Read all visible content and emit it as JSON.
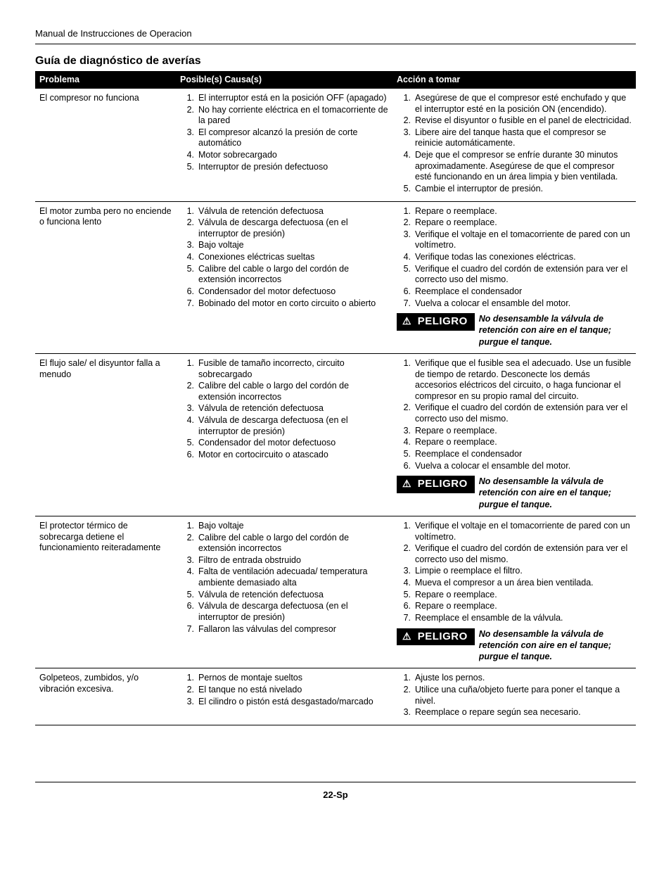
{
  "header": "Manual de Instrucciones de Operacion",
  "section_title": "Guía de diagnóstico de averías",
  "columns": {
    "problem": "Problema",
    "cause": "Posible(s) Causa(s)",
    "action": "Acción a tomar"
  },
  "peligro_label": "PELIGRO",
  "peligro_text": "No desensamble la válvula de retención con aire en el tanque; purgue el tanque.",
  "rows": [
    {
      "problem": "El compresor no funciona",
      "causes": [
        "El interruptor está en la posición OFF (apagado)",
        "No hay corriente eléctrica en el tomacorriente de la pared",
        "El compresor alcanzó la presión de corte automático",
        "Motor sobrecargado",
        "Interruptor de presión defectuoso"
      ],
      "actions": [
        "Asegúrese de que el compresor esté enchufado y que el interruptor esté en la posición ON (encendido).",
        "Revise el disyuntor o fusible en el panel de electricidad.",
        "Libere aire del tanque hasta que el compresor se reinicie automáticamente.",
        "Deje que el compresor se enfríe durante 30 minutos aproximadamente.  Asegúrese de que el compresor esté funcionando en un área limpia y bien ventilada.",
        "Cambie el interruptor de presión."
      ],
      "peligro": false
    },
    {
      "problem": "El motor zumba pero no enciende o funciona lento",
      "causes": [
        "Válvula de retención defectuosa",
        "Válvula de descarga defectuosa (en el interruptor de presión)",
        "Bajo voltaje",
        "Conexiones eléctricas sueltas",
        "Calibre del cable o largo del cordón de extensión incorrectos",
        "Condensador del motor defectuoso",
        "Bobinado del motor en corto circuito o abierto"
      ],
      "actions": [
        "Repare o reemplace.",
        "Repare o reemplace.",
        "Verifique el voltaje en el tomacorriente de pared con un voltímetro.",
        "Verifique todas las conexiones eléctricas.",
        "Verifique el cuadro del cordón de extensión para ver el correcto uso del mismo.",
        "Reemplace el condensador",
        "Vuelva a colocar el ensamble del motor."
      ],
      "peligro": true
    },
    {
      "problem": "El flujo sale/ el disyuntor falla a menudo",
      "causes": [
        "Fusible de tamaño incorrecto, circuito sobrecargado",
        "Calibre del cable o largo del cordón de extensión incorrectos",
        "Válvula de retención defectuosa",
        "Válvula de descarga defectuosa (en el interruptor de presión)",
        "Condensador del motor defectuoso",
        "Motor en cortocircuito o atascado"
      ],
      "actions": [
        "Verifique que el fusible sea el adecuado. Use un fusible de tiempo de retardo. Desconecte los demás accesorios eléctricos del circuito, o haga funcionar el compresor en su propio ramal del circuito.",
        "Verifique el cuadro del cordón de extensión para ver el correcto uso del mismo.",
        "Repare o reemplace.",
        "Repare o reemplace.",
        "Reemplace el condensador",
        "Vuelva a colocar el ensamble del motor."
      ],
      "peligro": true
    },
    {
      "problem": "El protector térmico de sobrecarga detiene el funcionamiento reiteradamente",
      "causes": [
        "Bajo voltaje",
        "Calibre del cable o largo del cordón de extensión incorrectos",
        "Filtro de entrada obstruido",
        "Falta de ventilación adecuada/ temperatura ambiente demasiado alta",
        "Válvula de retención defectuosa",
        "Válvula de descarga defectuosa (en el interruptor de presión)",
        "Fallaron las válvulas del compresor"
      ],
      "actions": [
        "Verifique el voltaje en el tomacorriente de pared con un voltímetro.",
        "Verifique el cuadro del cordón de extensión para ver el correcto uso del mismo.",
        "Limpie o reemplace el filtro.",
        "Mueva el compresor a un área bien ventilada.",
        "Repare o reemplace.",
        "Repare o reemplace.",
        "Reemplace el ensamble de la válvula."
      ],
      "peligro": true
    },
    {
      "problem": "Golpeteos, zumbidos, y/o vibración excesiva.",
      "causes": [
        "Pernos de montaje sueltos",
        "El tanque no está nivelado",
        "El cilindro o pistón está desgastado/marcado"
      ],
      "actions": [
        "Ajuste los pernos.",
        "Utilice una cuña/objeto fuerte para poner el tanque a nivel.",
        "Reemplace o repare según sea necesario."
      ],
      "peligro": false
    }
  ],
  "page_number": "22-Sp"
}
